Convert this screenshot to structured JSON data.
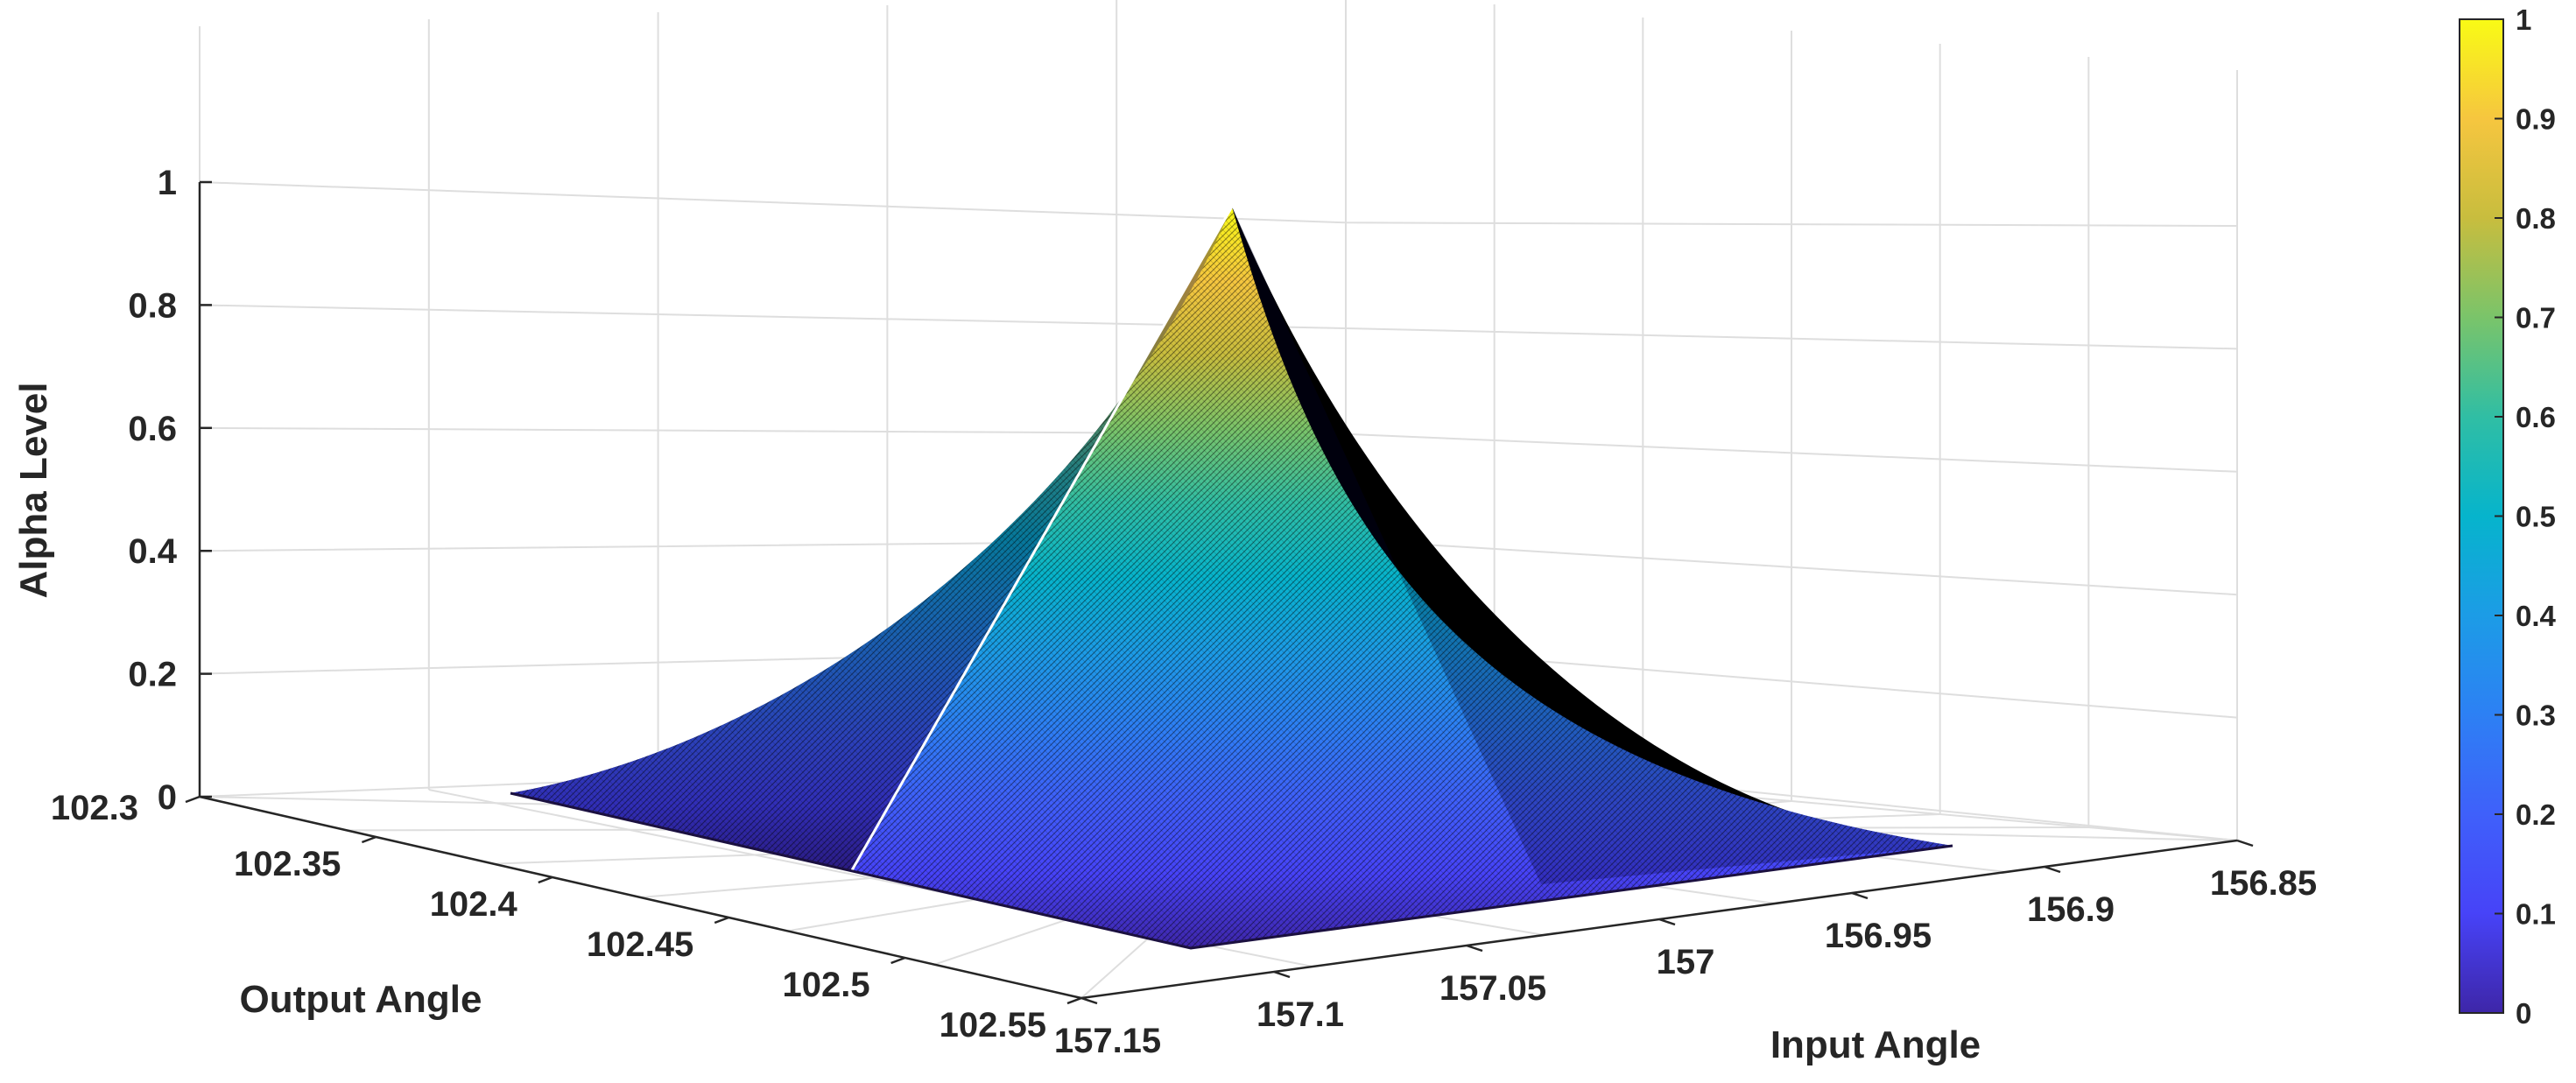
{
  "chart_data": {
    "type": "surface",
    "title": "",
    "xlabel": "Input Angle",
    "ylabel": "Output Angle",
    "zlabel": "Alpha Level",
    "x_ticks": [
      "157.15",
      "157.1",
      "157.05",
      "157",
      "156.95",
      "156.9",
      "156.85"
    ],
    "y_ticks": [
      "102.3",
      "102.35",
      "102.4",
      "102.45",
      "102.5",
      "102.55"
    ],
    "z_ticks": [
      "0",
      "0.2",
      "0.4",
      "0.6",
      "0.8",
      "1"
    ],
    "xlim": [
      156.85,
      157.15
    ],
    "ylim": [
      102.3,
      102.55
    ],
    "zlim": [
      0,
      1
    ],
    "x_reversed": true,
    "grid": true,
    "colormap": "parula",
    "surface": {
      "x_range": [
        156.9,
        157.15
      ],
      "y_range": [
        102.33,
        102.55
      ],
      "peak": {
        "x": 157.02,
        "y": 102.44,
        "z": 1
      },
      "base_z": 0,
      "profile": "concave"
    },
    "colorbar": {
      "ticks": [
        "0",
        "0.1",
        "0.2",
        "0.3",
        "0.4",
        "0.5",
        "0.6",
        "0.7",
        "0.8",
        "0.9",
        "1"
      ],
      "range": [
        0,
        1
      ]
    }
  },
  "colors": {
    "grid": "#dedede",
    "axis": "#262626",
    "edge": "#000000",
    "ridge": "#ffffff"
  }
}
